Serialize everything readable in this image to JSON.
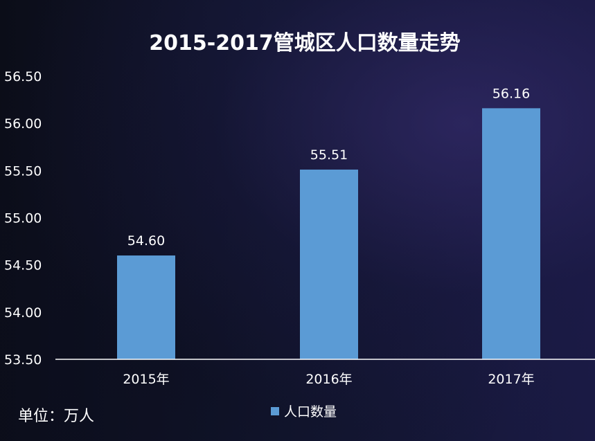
{
  "chart_data": {
    "type": "bar",
    "title": "2015-2017管城区人口数量走势",
    "categories": [
      "2015年",
      "2016年",
      "2017年"
    ],
    "series": [
      {
        "name": "人口数量",
        "values": [
          54.6,
          55.51,
          56.16
        ]
      }
    ],
    "data_labels": [
      "54.60",
      "55.51",
      "56.16"
    ],
    "ylim": [
      53.5,
      56.5
    ],
    "yticks": [
      "53.50",
      "54.00",
      "54.50",
      "55.00",
      "55.50",
      "56.00",
      "56.50"
    ],
    "ytick_values": [
      53.5,
      54.0,
      54.5,
      55.0,
      55.5,
      56.0,
      56.5
    ],
    "grid": false,
    "legend_position": "bottom-center",
    "unit_label": "单位：万人",
    "bar_color": "#5b9bd5",
    "axis_color": "#ffffff"
  }
}
